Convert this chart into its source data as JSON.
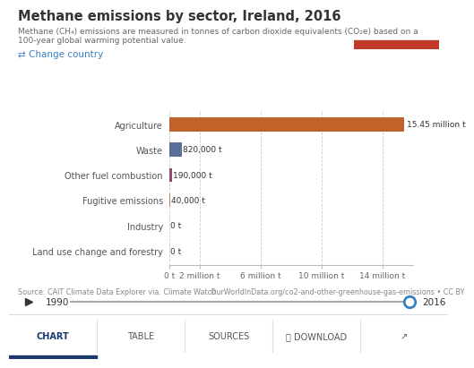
{
  "title": "Methane emissions by sector, Ireland, 2016",
  "subtitle_line1": "Methane (CH₄) emissions are measured in tonnes of carbon dioxide equivalents (CO₂e) based on a",
  "subtitle_line2": "100-year global warming potential value.",
  "categories": [
    "Agriculture",
    "Waste",
    "Other fuel combustion",
    "Fugitive emissions",
    "Industry",
    "Land use change and forestry"
  ],
  "values": [
    15450000,
    820000,
    190000,
    40000,
    0,
    0
  ],
  "bar_colors": [
    "#c0622a",
    "#5b6e9b",
    "#8b4a6e",
    "#d47068",
    "#5b6e9b",
    "#5b6e9b"
  ],
  "bar_labels": [
    "15.45 million t",
    "820,000 t",
    "190,000 t",
    "40,000 t",
    "0 t",
    "0 t"
  ],
  "xlim": [
    0,
    16000000
  ],
  "xticks": [
    0,
    2000000,
    6000000,
    10000000,
    14000000
  ],
  "xtick_labels": [
    "0 t",
    "2 million t",
    "6 million t",
    "10 million t",
    "14 million t"
  ],
  "change_country_text": "⇄ Change country",
  "source_text": "Source: CAIT Climate Data Explorer via. Climate Watch",
  "url_text": "OurWorldInData.org/co2-and-other-greenhouse-gas-emissions • CC BY",
  "owid_box_color": "#1a2a4a",
  "owid_red": "#c0392b",
  "background_color": "#ffffff",
  "grid_color": "#cccccc",
  "title_color": "#333333",
  "subtitle_color": "#666666",
  "link_color": "#3a7fc1",
  "tab_bottom_color": "#f5f5f5",
  "tab_active_color": "#1a3a6c",
  "tab_inactive_color": "#555555",
  "year_start": "1990",
  "year_end": "2016",
  "share_icon": "↗"
}
